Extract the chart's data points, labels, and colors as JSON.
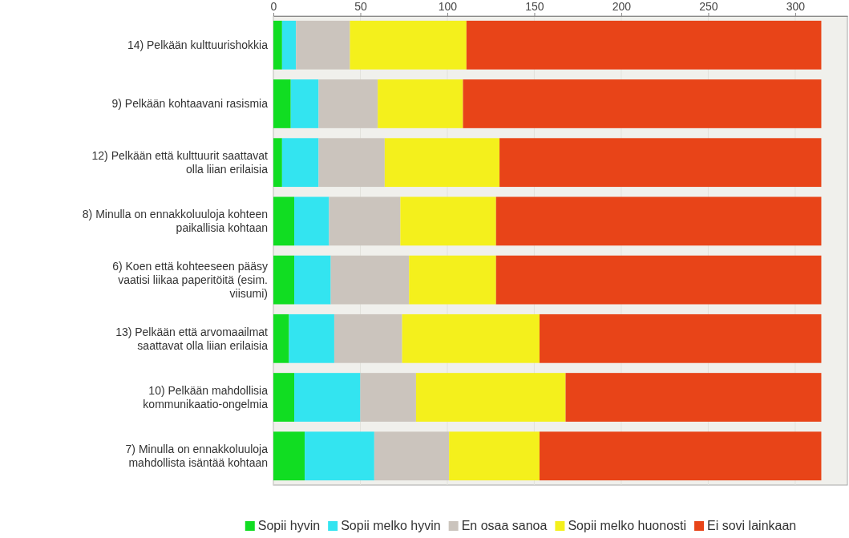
{
  "chart_data": {
    "type": "bar",
    "orientation": "horizontal",
    "stacked": true,
    "categories": [
      "14) Pelkään kulttuurishokkia",
      "9) Pelkään kohtaavani rasismia",
      "12) Pelkään että kulttuurit saattavat olla liian erilaisia",
      "8) Minulla on ennakkoluuloja kohteen paikallisia kohtaan",
      "6) Koen että kohteeseen pääsy vaatisi liikaa paperitöitä (esim. viisumi)",
      "13) Pelkään että arvomaailmat saattavat olla liian erilaisia",
      "10) Pelkään mahdollisia kommunikaatio-ongelmia",
      "7) Minulla on ennakkoluuloja mahdollista isäntää kohtaan"
    ],
    "series": [
      {
        "name": "Sopii hyvin",
        "color": "#11dd22",
        "values": [
          5,
          10,
          5,
          12,
          12,
          9,
          12,
          18
        ]
      },
      {
        "name": "Sopii melko hyvin",
        "color": "#33e4f0",
        "values": [
          8,
          16,
          21,
          20,
          21,
          26,
          38,
          40
        ]
      },
      {
        "name": "En osaa sanoa",
        "color": "#cbc4bd",
        "values": [
          31,
          34,
          38,
          41,
          45,
          39,
          32,
          43
        ]
      },
      {
        "name": "Sopii melko huonosti",
        "color": "#f4f01c",
        "values": [
          67,
          49,
          66,
          55,
          50,
          79,
          86,
          52
        ]
      },
      {
        "name": "Ei sovi lainkaan",
        "color": "#e84418",
        "values": [
          204,
          206,
          185,
          187,
          187,
          162,
          147,
          162
        ]
      }
    ],
    "xlim": [
      0,
      330
    ],
    "xticks": [
      0,
      50,
      100,
      150,
      200,
      250,
      300
    ],
    "grid": "x",
    "legend": "bottom"
  }
}
